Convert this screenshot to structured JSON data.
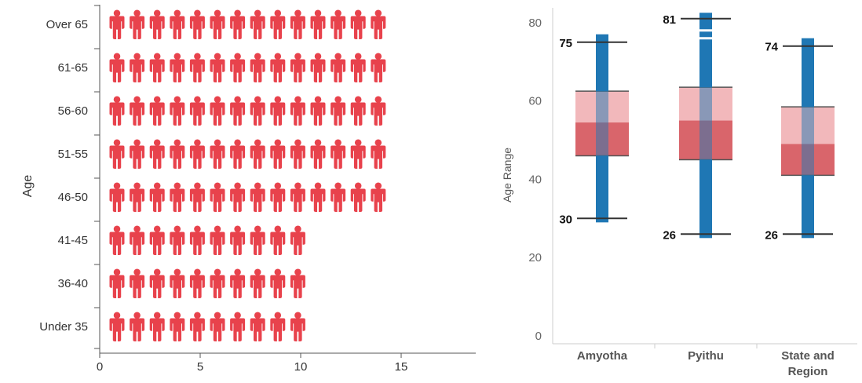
{
  "chart_data": [
    {
      "type": "bar",
      "style": "pictograph",
      "icon": "person-icon",
      "icon_color": "#e8424c",
      "orientation": "horizontal",
      "ylabel": "Age",
      "xlabel": "",
      "categories": [
        "Over 65",
        "61-65",
        "56-60",
        "51-55",
        "46-50",
        "41-45",
        "36-40",
        "Under 35"
      ],
      "values": [
        14,
        14,
        14,
        14,
        14,
        10,
        10,
        10
      ],
      "xticks": [
        "0",
        "5",
        "10",
        "15"
      ],
      "xlim": [
        0,
        18
      ],
      "grid": false
    },
    {
      "type": "box",
      "ylabel": "Age Range",
      "xlabel": "",
      "categories": [
        "Amyotha",
        "Pyithu",
        "State and\nRegion"
      ],
      "yticks": [
        "0",
        "20",
        "40",
        "60",
        "80"
      ],
      "ylim": [
        0,
        86
      ],
      "grid": false,
      "colors": {
        "range_bar": "#1f77b4",
        "box_upper": "#f2b8bb",
        "box_lower": "#d9656b",
        "whisker": "#333333"
      },
      "series": [
        {
          "category": "Amyotha",
          "whisker_low": 30,
          "q1": 46,
          "median": 54.5,
          "q3": 62.5,
          "whisker_high": 75,
          "range_min": 29,
          "range_max": 77,
          "whisker_low_label": "30",
          "whisker_high_label": "75"
        },
        {
          "category": "Pyithu",
          "whisker_low": 26,
          "q1": 45,
          "median": 55,
          "q3": 63.5,
          "whisker_high": 81,
          "range_min": 25,
          "range_max": 82.5,
          "outliers": [
            76,
            78
          ],
          "whisker_low_label": "26",
          "whisker_high_label": "81"
        },
        {
          "category": "State and Region",
          "whisker_low": 26,
          "q1": 41,
          "median": 49,
          "q3": 58.5,
          "whisker_high": 74,
          "range_min": 25,
          "range_max": 76,
          "whisker_low_label": "26",
          "whisker_high_label": "74"
        }
      ]
    }
  ]
}
